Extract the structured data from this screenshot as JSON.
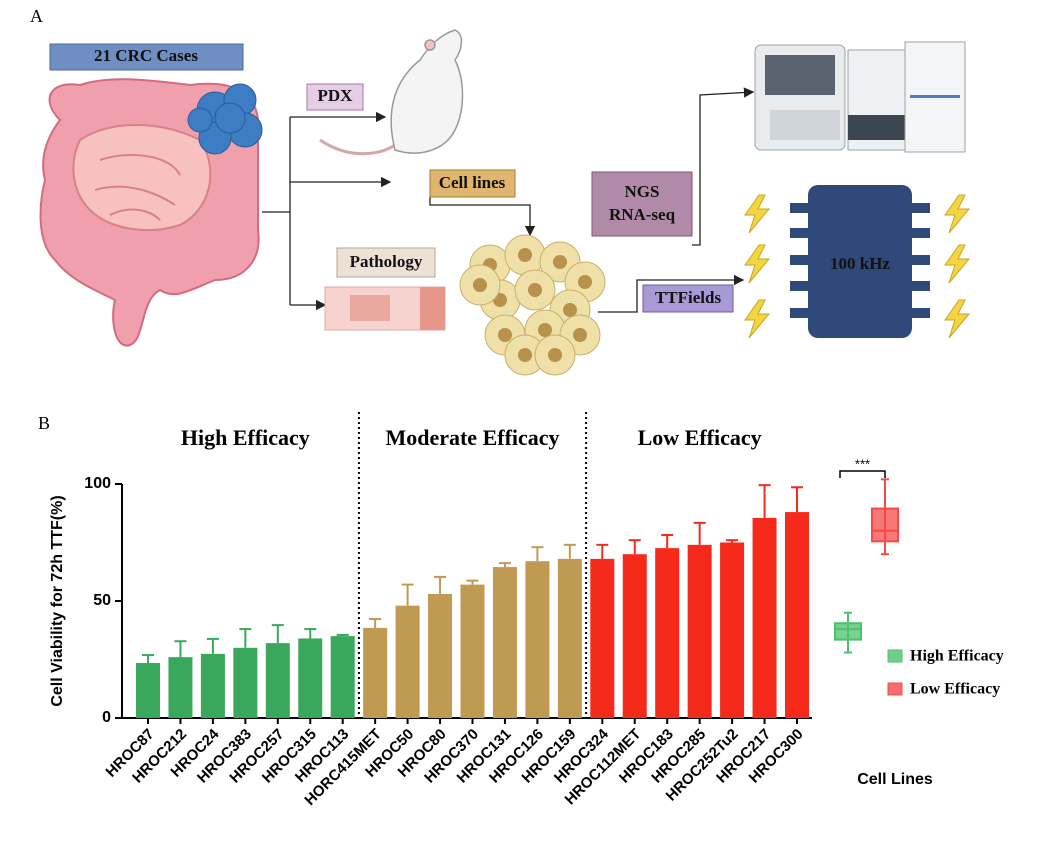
{
  "panel_labels": [
    "A",
    "B"
  ],
  "diagram": {
    "cases": "21 CRC Cases",
    "pdx": "PDX",
    "cell_lines": "Cell lines",
    "pathology": "Pathology",
    "ngs": [
      "NGS",
      "RNA-seq"
    ],
    "ttfields": "TTFields",
    "frequency": "100 kHz"
  },
  "chart_data": {
    "type": "bar",
    "group_titles": [
      "High Efficacy",
      "Moderate Efficacy",
      "Low Efficacy"
    ],
    "y_label": "Cell Viability for 72h TTF(%)",
    "x_label": "Cell Lines",
    "categories": [
      "HROC87",
      "HROC212",
      "HROC24",
      "HROC383",
      "HROC257",
      "HROC315",
      "HROC113",
      "HORC415MET",
      "HROC50",
      "HROC80",
      "HROC370",
      "HROC131",
      "HROC126",
      "HROC159",
      "HROC324",
      "HROC112MET",
      "HROC183",
      "HROC285",
      "HROC252Tu2",
      "HROC217",
      "HROC300"
    ],
    "values": [
      23.5,
      26,
      27.4,
      30,
      32,
      34,
      35,
      38.5,
      48,
      53,
      57,
      64.5,
      67,
      68,
      68,
      70,
      72.6,
      74,
      75,
      85.5,
      88
    ],
    "errors": [
      3.4,
      6.8,
      6.4,
      8,
      7.7,
      4,
      0.5,
      3.8,
      9,
      7.3,
      1.7,
      1.7,
      6,
      6,
      6,
      6,
      5.6,
      9.4,
      1,
      14,
      10.6
    ],
    "colors": [
      "#3aa85c",
      "#3aa85c",
      "#3aa85c",
      "#3aa85c",
      "#3aa85c",
      "#3aa85c",
      "#3aa85c",
      "#c09a52",
      "#c09a52",
      "#c09a52",
      "#c09a52",
      "#c09a52",
      "#c09a52",
      "#c09a52",
      "#f52a1a",
      "#f52a1a",
      "#f52a1a",
      "#f52a1a",
      "#f52a1a",
      "#f52a1a",
      "#f52a1a"
    ],
    "boxes": [
      {
        "name": "High Efficacy",
        "color": "#4cc06e",
        "min": 28,
        "q1": 33.5,
        "median": 38,
        "q3": 40.5,
        "max": 45
      },
      {
        "name": "Low Efficacy",
        "color": "#f5494a",
        "min": 70,
        "q1": 75.5,
        "median": 80,
        "q3": 89.5,
        "max": 102
      }
    ],
    "significance": "***",
    "ylim": [
      0,
      100
    ],
    "yticks": [
      0,
      50,
      100
    ]
  }
}
